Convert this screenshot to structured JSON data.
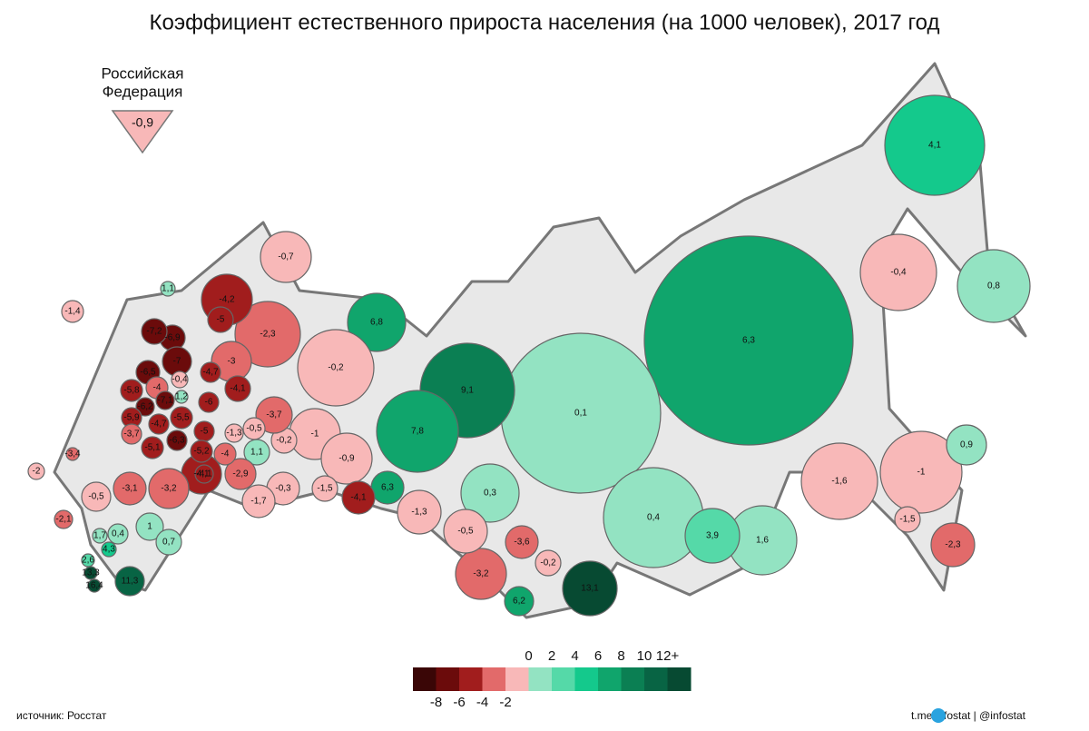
{
  "title": "Коэффициент естественного прироста населения (на 1000 человек), 2017 год",
  "summary": {
    "name_lines": [
      "Российская",
      "Федерация"
    ],
    "value": -0.9,
    "label": "-0,9"
  },
  "legend": {
    "colors": [
      "#3a0606",
      "#6b0b0b",
      "#a11d1d",
      "#e26a6a",
      "#f8b8b8",
      "#93e3c2",
      "#55d9a8",
      "#14c98c",
      "#10a56c",
      "#0b7f53",
      "#086444",
      "#074a32"
    ],
    "lim": [
      -10,
      14
    ],
    "ticks_below": [
      -8,
      -6,
      -4,
      -2
    ],
    "ticks_above": [
      0,
      2,
      4,
      6,
      8,
      10,
      {
        "value": 12,
        "label": "12+"
      }
    ]
  },
  "regions": [
    {
      "value": 6.3,
      "label": "6,3"
    },
    {
      "value": 0.1,
      "label": "0,1"
    },
    {
      "value": 4.1,
      "label": "4,1"
    },
    {
      "value": 0.8,
      "label": "0,8"
    },
    {
      "value": -0.4,
      "label": "-0,4"
    },
    {
      "value": 9.1,
      "label": "9,1"
    },
    {
      "value": 7.8,
      "label": "7,8"
    },
    {
      "value": 0.4,
      "label": "0,4"
    },
    {
      "value": -1,
      "label": "-1"
    },
    {
      "value": -1.6,
      "label": "-1,6"
    },
    {
      "value": 6.8,
      "label": "6,8"
    },
    {
      "value": -0.2,
      "label": "-0,2"
    },
    {
      "value": -2.3,
      "label": "-2,3"
    },
    {
      "value": -0.7,
      "label": "-0,7"
    },
    {
      "value": -4.2,
      "label": "-4,2"
    },
    {
      "value": 1.6,
      "label": "1,6"
    },
    {
      "value": 3.9,
      "label": "3,9"
    },
    {
      "value": 13.1,
      "label": "13,1"
    },
    {
      "value": 0.3,
      "label": "0,3"
    },
    {
      "value": -3.2,
      "label": "-3,2"
    },
    {
      "value": -0.5,
      "label": "-0,5"
    },
    {
      "value": -1,
      "label": "-1"
    },
    {
      "value": -0.9,
      "label": "-0,9"
    },
    {
      "value": -2.3,
      "label": "-2,3"
    },
    {
      "value": 0.9,
      "label": "0,9"
    },
    {
      "value": -1.3,
      "label": "-1,3"
    },
    {
      "value": 6.3,
      "label": "6,3"
    },
    {
      "value": -4.1,
      "label": "-4,1"
    },
    {
      "value": -3.6,
      "label": "-3,6"
    },
    {
      "value": 6.2,
      "label": "6,2"
    },
    {
      "value": -0.2,
      "label": "-0,2"
    },
    {
      "value": -1.5,
      "label": "-1,5"
    },
    {
      "value": -1.5,
      "label": "-1,5"
    },
    {
      "value": -0.3,
      "label": "-0,3"
    },
    {
      "value": -1.7,
      "label": "-1,7"
    },
    {
      "value": -0.2,
      "label": "-0,2"
    },
    {
      "value": -3.7,
      "label": "-3,7"
    },
    {
      "value": 1.1,
      "label": "1,1"
    },
    {
      "value": -0.5,
      "label": "-0,5"
    },
    {
      "value": -1.3,
      "label": "-1,3"
    },
    {
      "value": -2.9,
      "label": "-2,9"
    },
    {
      "value": -4.1,
      "label": "-4,1"
    },
    {
      "value": -3.2,
      "label": "-3,2"
    },
    {
      "value": -3.1,
      "label": "-3,1"
    },
    {
      "value": -0.5,
      "label": "-0,5"
    },
    {
      "value": 1,
      "label": "1"
    },
    {
      "value": 0.7,
      "label": "0,7"
    },
    {
      "value": 0.4,
      "label": "0,4"
    },
    {
      "value": 1.7,
      "label": "1,7"
    },
    {
      "value": 4.3,
      "label": "4,3"
    },
    {
      "value": 2.6,
      "label": "2,6"
    },
    {
      "value": 13.3,
      "label": "13,3"
    },
    {
      "value": 16.4,
      "label": "16,4"
    },
    {
      "value": 11.3,
      "label": "11,3"
    },
    {
      "value": -2.1,
      "label": "-2,1"
    },
    {
      "value": -2,
      "label": "-2"
    },
    {
      "value": -3.4,
      "label": "-3,4"
    },
    {
      "value": -1.4,
      "label": "-1,4"
    },
    {
      "value": 1.1,
      "label": "1,1"
    },
    {
      "value": -5,
      "label": "-5"
    },
    {
      "value": -3,
      "label": "-3"
    },
    {
      "value": -6.9,
      "label": "-6,9"
    },
    {
      "value": -7.2,
      "label": "-7,2"
    },
    {
      "value": -7,
      "label": "-7"
    },
    {
      "value": -6.5,
      "label": "-6,5"
    },
    {
      "value": -4.7,
      "label": "-4,7"
    },
    {
      "value": -4.1,
      "label": "-4,1"
    },
    {
      "value": -0.4,
      "label": "-0,4"
    },
    {
      "value": -6,
      "label": "-6"
    },
    {
      "value": 1.2,
      "label": "1,2"
    },
    {
      "value": -4,
      "label": "-4"
    },
    {
      "value": -5.8,
      "label": "-5,8"
    },
    {
      "value": -7.1,
      "label": "-7,1"
    },
    {
      "value": -6.2,
      "label": "-6,2"
    },
    {
      "value": -5.9,
      "label": "-5,9"
    },
    {
      "value": -4.7,
      "label": "-4,7"
    },
    {
      "value": -5.5,
      "label": "-5,5"
    },
    {
      "value": -3.7,
      "label": "-3,7"
    },
    {
      "value": -5.1,
      "label": "-5,1"
    },
    {
      "value": -6.3,
      "label": "-6,3"
    },
    {
      "value": -5,
      "label": "-5"
    },
    {
      "value": -5.2,
      "label": "-5,2"
    },
    {
      "value": -4,
      "label": "-4"
    },
    {
      "value": -4.1,
      "label": "-4,1"
    }
  ],
  "footer": {
    "source": "источник: Росстат",
    "credit": "t.me/infostat | @infostat"
  }
}
